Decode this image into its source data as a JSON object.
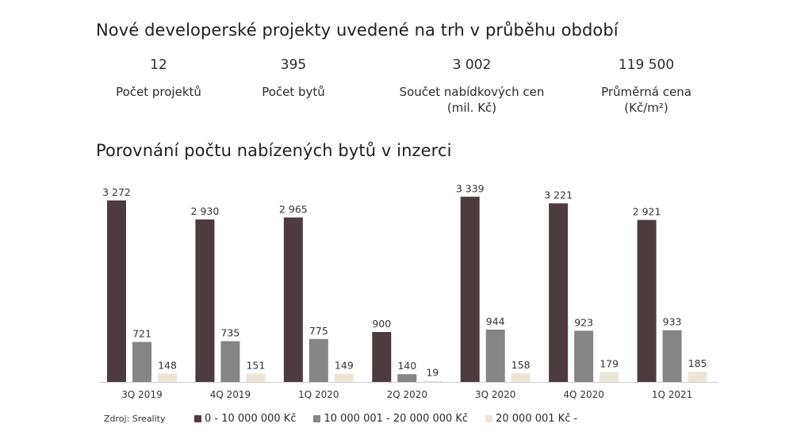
{
  "header": {
    "title": "Nové developerské projekty uvedené na trh v průběhu období",
    "stats": [
      {
        "value": "12",
        "label_line1": "Počet projektů",
        "label_line2": ""
      },
      {
        "value": "395",
        "label_line1": "Počet bytů",
        "label_line2": ""
      },
      {
        "value": "3 002",
        "label_line1": "Součet nabídkových cen",
        "label_line2": "(mil. Kč)"
      },
      {
        "value": "119 500",
        "label_line1": "Průměrná cena",
        "label_line2": "(Kč/m²)"
      }
    ]
  },
  "chart_title": "Porovnání počtu nabízených bytů v inzerci",
  "source": "Zdroj: Sreality",
  "chart_data": {
    "type": "bar",
    "title": "Porovnání počtu nabízených bytů v inzerci",
    "categories": [
      "3Q 2019",
      "4Q 2019",
      "1Q 2020",
      "2Q 2020",
      "3Q 2020",
      "4Q 2020",
      "1Q 2021"
    ],
    "series": [
      {
        "name": "0 - 10 000 000 Kč",
        "color": "#4e3b40",
        "values": [
          3272,
          2930,
          2965,
          900,
          3339,
          3221,
          2921
        ],
        "labels": [
          "3 272",
          "2 930",
          "2 965",
          "900",
          "3 339",
          "3 221",
          "2 921"
        ]
      },
      {
        "name": "10 000 001 - 20 000 000 Kč",
        "color": "#858585",
        "values": [
          721,
          735,
          775,
          140,
          944,
          923,
          933
        ],
        "labels": [
          "721",
          "735",
          "775",
          "140",
          "944",
          "923",
          "933"
        ]
      },
      {
        "name": "20 000 001 Kč -",
        "color": "#ede6d6",
        "values": [
          148,
          151,
          149,
          19,
          158,
          179,
          185
        ],
        "labels": [
          "148",
          "151",
          "149",
          "19",
          "158",
          "179",
          "185"
        ]
      }
    ],
    "ylim": [
      0,
      3500
    ],
    "grid": false,
    "legend": "bottom"
  }
}
